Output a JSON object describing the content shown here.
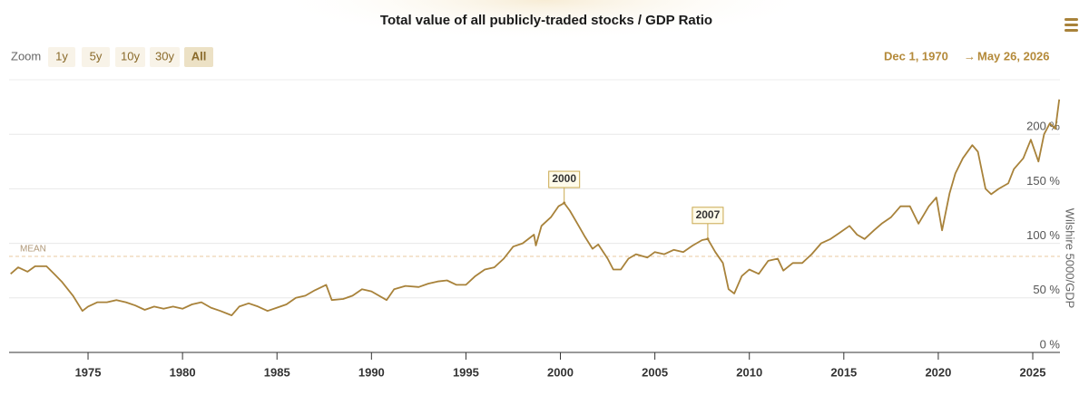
{
  "chart_data": {
    "type": "line",
    "title": "Total value of all publicly-traded stocks / GDP Ratio",
    "zoom_label": "Zoom",
    "zoom_buttons": [
      "1y",
      "5y",
      "10y",
      "30y",
      "All"
    ],
    "zoom_selected": 4,
    "range_from": "Dec 1, 1970",
    "range_arrow": "→",
    "range_to": "May 26, 2026",
    "y_axis_title": "Wilshire 5000/GDP",
    "xlim": [
      1970.82,
      2026.44
    ],
    "ylim": [
      0,
      250
    ],
    "xticks": [
      1975,
      1980,
      1985,
      1990,
      1995,
      2000,
      2005,
      2010,
      2015,
      2020,
      2025
    ],
    "yticks": [
      {
        "value": 0,
        "label": "0 %"
      },
      {
        "value": 50,
        "label": "50 %"
      },
      {
        "value": 100,
        "label": "100 %"
      },
      {
        "value": 150,
        "label": "150 %"
      },
      {
        "value": 200,
        "label": "200 %"
      }
    ],
    "grid": true,
    "mean": {
      "label": "MEAN",
      "value": 88
    },
    "annotations": [
      {
        "text": "2000",
        "x": 2000.2,
        "y": 137
      },
      {
        "text": "2007",
        "x": 2007.8,
        "y": 104
      }
    ],
    "series": [
      {
        "color": "#a8823a",
        "x": [
          1970.9,
          1971.3,
          1971.8,
          1972.2,
          1972.8,
          1973.2,
          1973.6,
          1974.2,
          1974.7,
          1975.0,
          1975.5,
          1976.0,
          1976.5,
          1977.0,
          1977.5,
          1978.0,
          1978.5,
          1979.0,
          1979.5,
          1980.0,
          1980.5,
          1981.0,
          1981.5,
          1982.0,
          1982.6,
          1983.0,
          1983.5,
          1984.0,
          1984.5,
          1985.0,
          1985.5,
          1986.0,
          1986.5,
          1987.0,
          1987.6,
          1987.9,
          1988.5,
          1989.0,
          1989.5,
          1990.0,
          1990.8,
          1991.2,
          1991.8,
          1992.5,
          1993.0,
          1993.5,
          1994.0,
          1994.5,
          1995.0,
          1995.5,
          1996.0,
          1996.5,
          1997.0,
          1997.5,
          1998.0,
          1998.6,
          1998.7,
          1999.0,
          1999.5,
          1999.9,
          2000.2,
          2000.5,
          2000.9,
          2001.3,
          2001.7,
          2002.0,
          2002.5,
          2002.8,
          2003.2,
          2003.6,
          2004.0,
          2004.6,
          2005.0,
          2005.5,
          2006.0,
          2006.5,
          2007.0,
          2007.5,
          2007.8,
          2008.2,
          2008.6,
          2008.9,
          2009.2,
          2009.6,
          2010.0,
          2010.5,
          2011.0,
          2011.5,
          2011.8,
          2012.3,
          2012.8,
          2013.3,
          2013.8,
          2014.3,
          2014.8,
          2015.3,
          2015.7,
          2016.1,
          2016.6,
          2017.0,
          2017.5,
          2018.0,
          2018.5,
          2018.95,
          2019.5,
          2019.9,
          2020.2,
          2020.6,
          2020.9,
          2021.3,
          2021.8,
          2022.1,
          2022.5,
          2022.8,
          2023.2,
          2023.7,
          2024.0,
          2024.5,
          2024.9,
          2025.3,
          2025.6,
          2025.9,
          2026.2,
          2026.4
        ],
        "values": [
          72,
          78,
          74,
          79,
          79,
          72,
          65,
          52,
          38,
          42,
          46,
          46,
          48,
          46,
          43,
          39,
          42,
          40,
          42,
          40,
          44,
          46,
          41,
          38,
          34,
          42,
          45,
          42,
          38,
          41,
          44,
          50,
          52,
          57,
          62,
          48,
          49,
          52,
          58,
          56,
          48,
          58,
          61,
          60,
          63,
          65,
          66,
          62,
          62,
          70,
          76,
          78,
          86,
          97,
          100,
          108,
          98,
          116,
          124,
          134,
          137,
          130,
          118,
          106,
          95,
          99,
          86,
          76,
          76,
          86,
          90,
          87,
          92,
          90,
          94,
          92,
          98,
          103,
          104,
          92,
          82,
          58,
          54,
          70,
          76,
          72,
          84,
          86,
          75,
          82,
          82,
          90,
          100,
          104,
          110,
          116,
          108,
          104,
          112,
          118,
          124,
          134,
          134,
          118,
          134,
          142,
          112,
          146,
          164,
          178,
          190,
          184,
          150,
          145,
          150,
          155,
          168,
          178,
          195,
          175,
          200,
          210,
          205,
          232
        ]
      }
    ]
  }
}
